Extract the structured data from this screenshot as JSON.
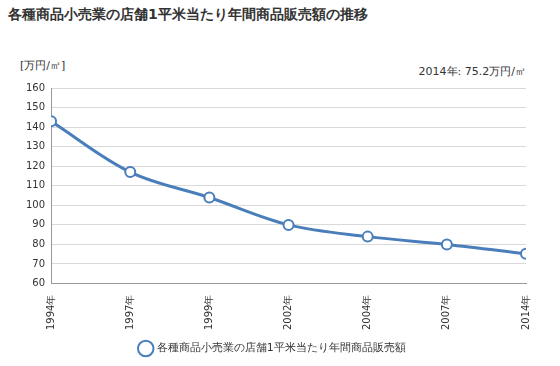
{
  "chart_data": {
    "type": "line",
    "title": "各種商品小売業の店舗1平米当たり年間商品販売額の推移",
    "y_label": "[万円/㎡]",
    "annotation": "2014年: 75.2万円/㎡",
    "categories": [
      "1994年",
      "1997年",
      "1999年",
      "2002年",
      "2004年",
      "2007年",
      "2014年"
    ],
    "series": [
      {
        "name": "各種商品小売業の店舗1平米当たり年間商品販売額",
        "color": "#4a7ebb",
        "marker": "circle",
        "values": [
          143,
          117,
          104,
          90,
          84,
          80,
          75.2
        ]
      }
    ],
    "ylim": [
      60,
      160
    ],
    "yticks": [
      60,
      70,
      80,
      90,
      100,
      110,
      120,
      130,
      140,
      150,
      160
    ],
    "grid": true,
    "legend": "bottom"
  }
}
